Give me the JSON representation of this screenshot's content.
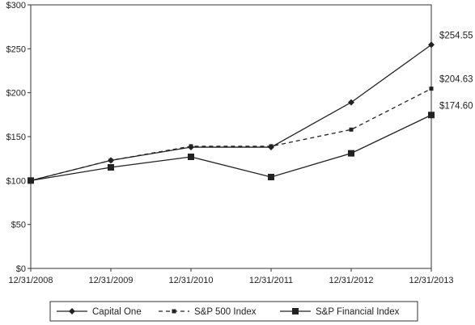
{
  "chart_data": {
    "type": "line",
    "title": "",
    "xlabel": "",
    "ylabel": "",
    "categories": [
      "12/31/2008",
      "12/31/2009",
      "12/31/2010",
      "12/31/2011",
      "12/31/2012",
      "12/31/2013"
    ],
    "y_ticks": [
      "$0",
      "$50",
      "$100",
      "$150",
      "$200",
      "$250",
      "$300"
    ],
    "ylim": [
      0,
      300
    ],
    "grid": false,
    "legend_position": "bottom",
    "series": [
      {
        "name": "Capital One",
        "values": [
          100,
          123,
          138,
          138,
          189,
          254.55
        ],
        "marker": "diamond",
        "line_style": "solid",
        "color": "#222222"
      },
      {
        "name": "S&P 500 Index",
        "values": [
          100,
          123,
          139,
          139,
          158,
          204.63
        ],
        "marker": "small-square",
        "line_style": "dashed",
        "color": "#222222"
      },
      {
        "name": "S&P Financial Index",
        "values": [
          100,
          115,
          127,
          104,
          131,
          174.6
        ],
        "marker": "square",
        "line_style": "solid",
        "color": "#222222"
      }
    ],
    "end_labels": [
      "$254.55",
      "$204.63",
      "$174.60"
    ]
  }
}
